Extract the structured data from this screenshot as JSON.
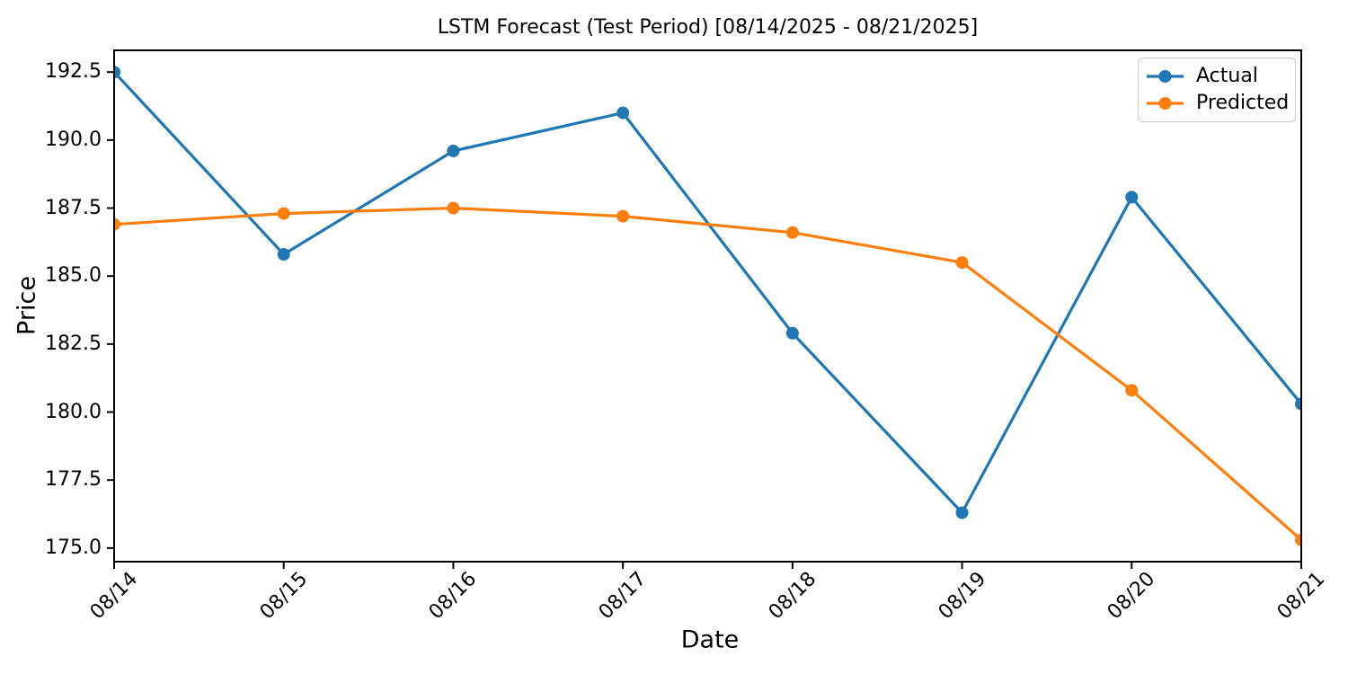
{
  "chart_data": {
    "type": "line",
    "title": "LSTM Forecast (Test Period) [08/14/2025 - 08/21/2025]",
    "xlabel": "Date",
    "ylabel": "Price",
    "categories": [
      "08/14",
      "08/15",
      "08/16",
      "08/17",
      "08/18",
      "08/19",
      "08/20",
      "08/21"
    ],
    "series": [
      {
        "name": "Actual",
        "color": "#1f77b4",
        "values": [
          192.5,
          185.8,
          189.6,
          191.0,
          182.9,
          176.3,
          187.9,
          180.3
        ]
      },
      {
        "name": "Predicted",
        "color": "#ff7f0e",
        "values": [
          186.9,
          187.3,
          187.5,
          187.2,
          186.6,
          185.5,
          180.8,
          175.3
        ]
      }
    ],
    "ylim": [
      174.5,
      193.3
    ],
    "yticks": [
      175.0,
      177.5,
      180.0,
      182.5,
      185.0,
      187.5,
      190.0,
      192.5
    ],
    "ytick_labels": [
      "175.0",
      "177.5",
      "180.0",
      "182.5",
      "185.0",
      "187.5",
      "190.0",
      "192.5"
    ],
    "x_tick_rotation": 45,
    "grid": false,
    "axis_color": "#000000",
    "legend": {
      "position": "upper-right",
      "items": [
        "Actual",
        "Predicted"
      ]
    }
  }
}
